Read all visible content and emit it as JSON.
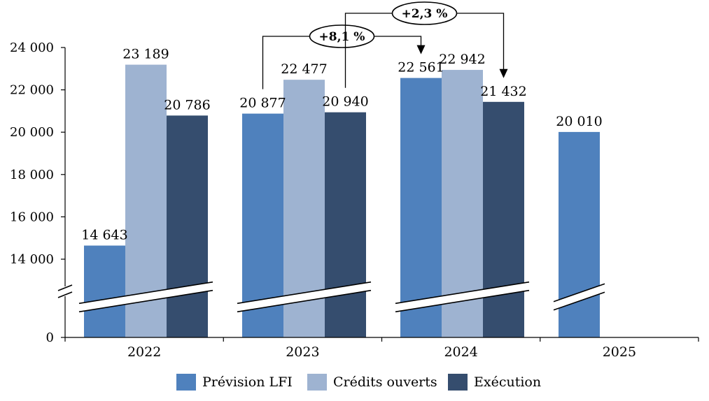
{
  "chart_data": {
    "type": "bar",
    "categories": [
      "2022",
      "2023",
      "2024",
      "2025"
    ],
    "series": [
      {
        "name": "Prévision LFI",
        "color": "#4f81bd",
        "values": [
          14643,
          20877,
          22561,
          20010
        ],
        "labels": [
          "14 643",
          "20 877",
          "22 561",
          "20 010"
        ]
      },
      {
        "name": "Crédits ouverts",
        "color": "#9eb3d1",
        "values": [
          23189,
          22477,
          22942,
          null
        ],
        "labels": [
          "23 189",
          "22 477",
          "22 942",
          ""
        ]
      },
      {
        "name": "Exécution",
        "color": "#354d6e",
        "values": [
          20786,
          20940,
          21432,
          null
        ],
        "labels": [
          "20 786",
          "20 940",
          "21 432",
          ""
        ]
      }
    ],
    "y_ticks": [
      {
        "value": 0,
        "label": "0"
      },
      {
        "value": 14000,
        "label": "14 000"
      },
      {
        "value": 16000,
        "label": "16 000"
      },
      {
        "value": 18000,
        "label": "18 000"
      },
      {
        "value": 20000,
        "label": "20 000"
      },
      {
        "value": 22000,
        "label": "22 000"
      },
      {
        "value": 24000,
        "label": "24 000"
      }
    ],
    "ylim": [
      0,
      24000
    ],
    "axis_break": true,
    "grid": false,
    "legend_position": "bottom",
    "annotations": [
      {
        "text": "+8,1 %",
        "from": {
          "category": "2023",
          "series": "Prévision LFI"
        },
        "to": {
          "category": "2024",
          "series": "Prévision LFI"
        }
      },
      {
        "text": "+2,3 %",
        "from": {
          "category": "2023",
          "series": "Exécution"
        },
        "to": {
          "category": "2024",
          "series": "Exécution"
        }
      }
    ],
    "title": "",
    "xlabel": "",
    "ylabel": ""
  }
}
